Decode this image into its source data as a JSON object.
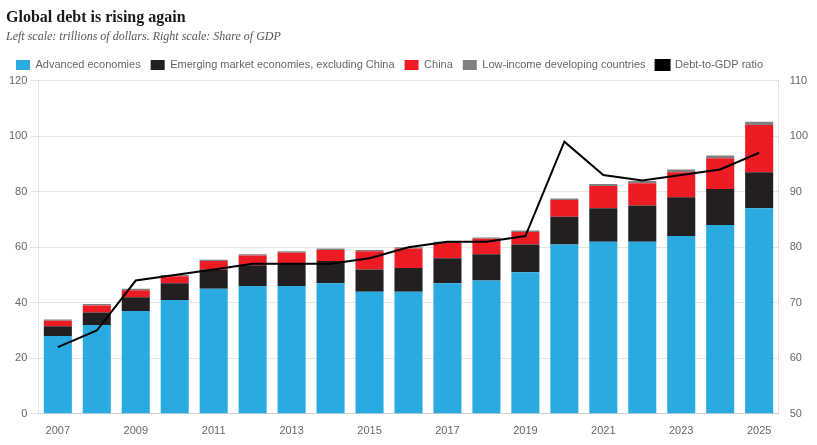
{
  "chart_data": {
    "type": "bar",
    "title": "Global debt is rising again",
    "subtitle": "Left scale: trillions of dollars. Right scale: Share of GDP",
    "categories": [
      "2007",
      null,
      "2009",
      null,
      "2011",
      null,
      "2013",
      null,
      "2015",
      null,
      "2017",
      null,
      "2019",
      null,
      "2021",
      null,
      "2023",
      null,
      "2025"
    ],
    "series": [
      {
        "name": "Advanced economies",
        "color": "#29ABE2",
        "values": [
          28,
          32,
          37,
          41,
          45,
          46,
          46,
          47,
          44,
          44,
          47,
          48,
          51,
          61,
          62,
          62,
          64,
          68,
          74
        ]
      },
      {
        "name": "Emerging market economies, excluding China",
        "color": "#231F20",
        "values": [
          3.5,
          4.5,
          5,
          6,
          7,
          7.5,
          8,
          8,
          8,
          8.5,
          9,
          9.5,
          10,
          10,
          12,
          13,
          14,
          13,
          13
        ]
      },
      {
        "name": "China",
        "color": "#ED1C24",
        "values": [
          2,
          2.5,
          2.5,
          2.5,
          3,
          3.5,
          4,
          4,
          6.5,
          7,
          5.5,
          5.5,
          4.5,
          6,
          8,
          8,
          9,
          11,
          17
        ]
      },
      {
        "name": "Low-income developing countries",
        "color": "#808080",
        "values": [
          0.5,
          0.5,
          0.5,
          0.5,
          0.5,
          0.5,
          0.5,
          0.5,
          0.5,
          0.5,
          0.5,
          0.5,
          0.5,
          0.5,
          0.8,
          0.8,
          1.0,
          1.0,
          1.2
        ]
      },
      {
        "name": "Debt-to-GDP ratio",
        "type": "line",
        "axis": "y2",
        "color": "#000000",
        "values": [
          62,
          65,
          74,
          75,
          76,
          77,
          77,
          77,
          78,
          80,
          81,
          81,
          82,
          99,
          93,
          92,
          93,
          94,
          97
        ]
      }
    ],
    "stacked": true,
    "ylim": [
      0,
      120
    ],
    "yticks": [
      0,
      20,
      40,
      60,
      80,
      100,
      120
    ],
    "y2lim": [
      50,
      110
    ],
    "y2ticks": [
      50,
      60,
      70,
      80,
      90,
      100,
      110
    ],
    "grid": true,
    "legend": "upper left"
  }
}
